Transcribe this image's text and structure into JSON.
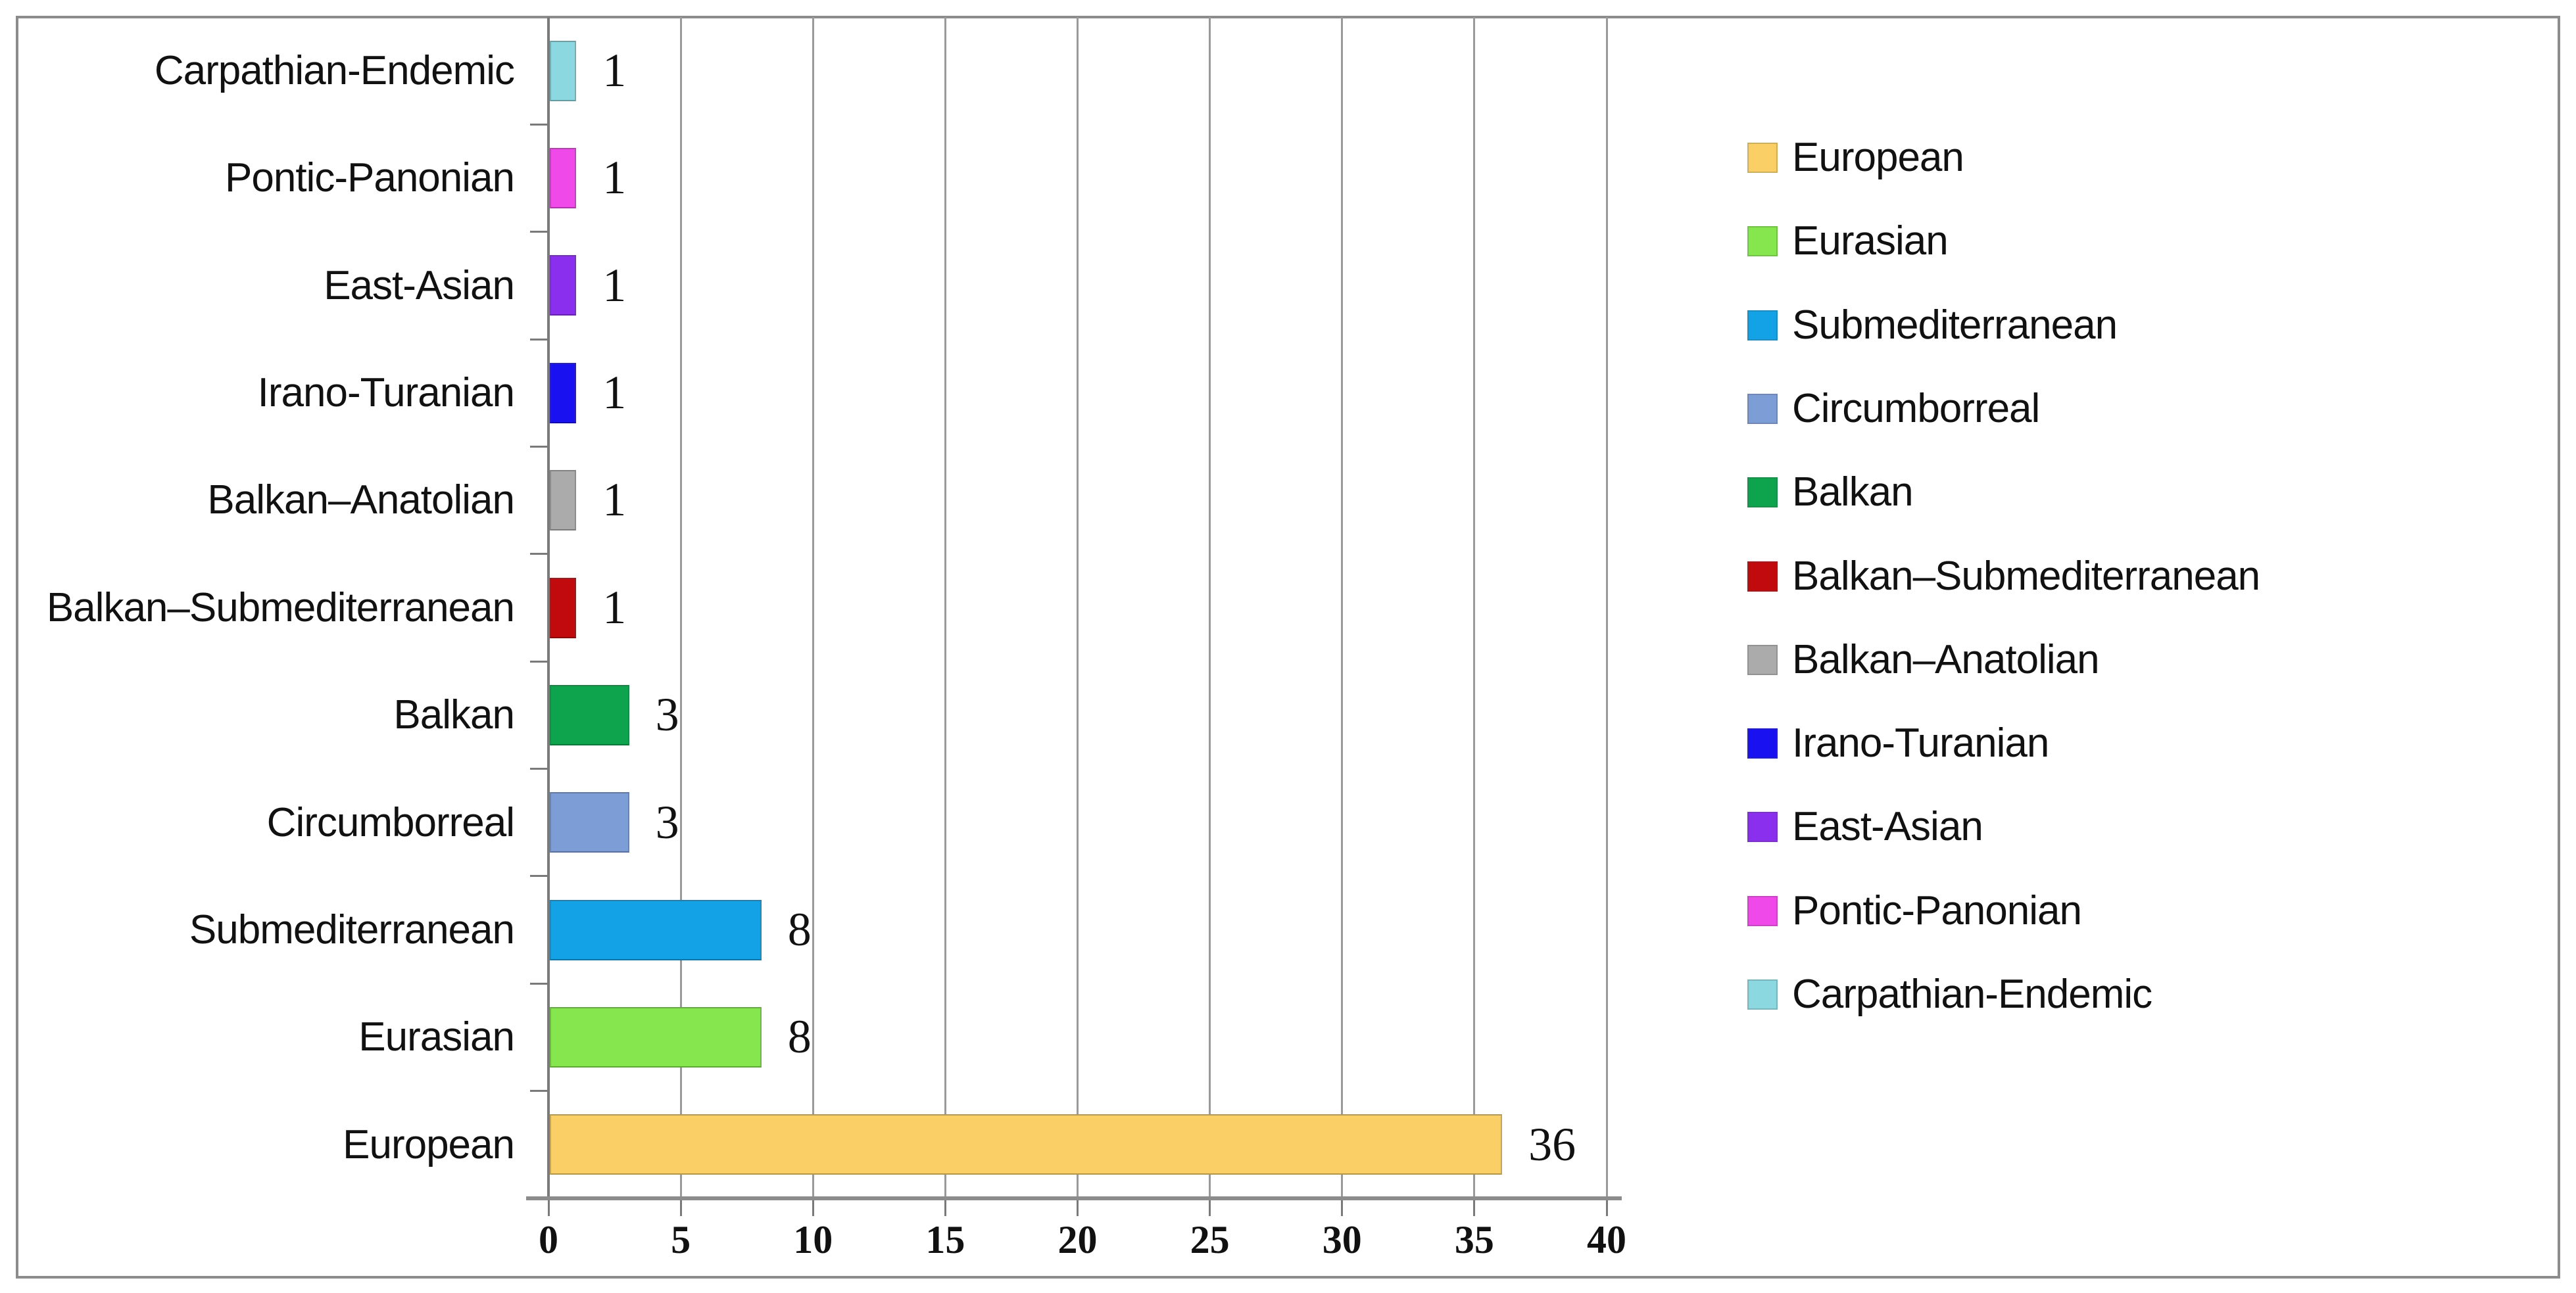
{
  "chart_data": {
    "type": "bar",
    "orientation": "horizontal",
    "title": "",
    "xlabel": "",
    "ylabel": "",
    "xlim": [
      0,
      40
    ],
    "x_ticks": [
      0,
      5,
      10,
      15,
      20,
      25,
      30,
      35,
      40
    ],
    "grid": "vertical",
    "legend_position": "right",
    "bars_top_to_bottom": [
      {
        "label": "Carpathian-Endemic",
        "value": 1,
        "color": "#8CD8E0"
      },
      {
        "label": "Pontic-Panonian",
        "value": 1,
        "color": "#EF49E9"
      },
      {
        "label": "East-Asian",
        "value": 1,
        "color": "#8B2FEE"
      },
      {
        "label": "Irano-Turanian",
        "value": 1,
        "color": "#1911F0"
      },
      {
        "label": "Balkan–Anatolian",
        "value": 1,
        "color": "#ABABAB"
      },
      {
        "label": "Balkan–Submediterranean",
        "value": 1,
        "color": "#C00A0E"
      },
      {
        "label": "Balkan",
        "value": 3,
        "color": "#0EA44D"
      },
      {
        "label": "Circumborreal",
        "value": 3,
        "color": "#7C9DD6"
      },
      {
        "label": "Submediterranean",
        "value": 8,
        "color": "#14A2E6"
      },
      {
        "label": "Eurasian",
        "value": 8,
        "color": "#85E74D"
      },
      {
        "label": "European",
        "value": 36,
        "color": "#FAD066"
      }
    ],
    "legend_top_to_bottom": [
      "European",
      "Eurasian",
      "Submediterranean",
      "Circumborreal",
      "Balkan",
      "Balkan–Submediterranean",
      "Balkan–Anatolian",
      "Irano-Turanian",
      "East-Asian",
      "Pontic-Panonian",
      "Carpathian-Endemic"
    ]
  },
  "colors": {
    "background": "#FFFFFF",
    "grid": "#9A9A9A",
    "y_axis": "#7A7A7A",
    "baseline": "#8C8C8C",
    "chart_border": "#8C8C8C",
    "text": "#111111"
  }
}
